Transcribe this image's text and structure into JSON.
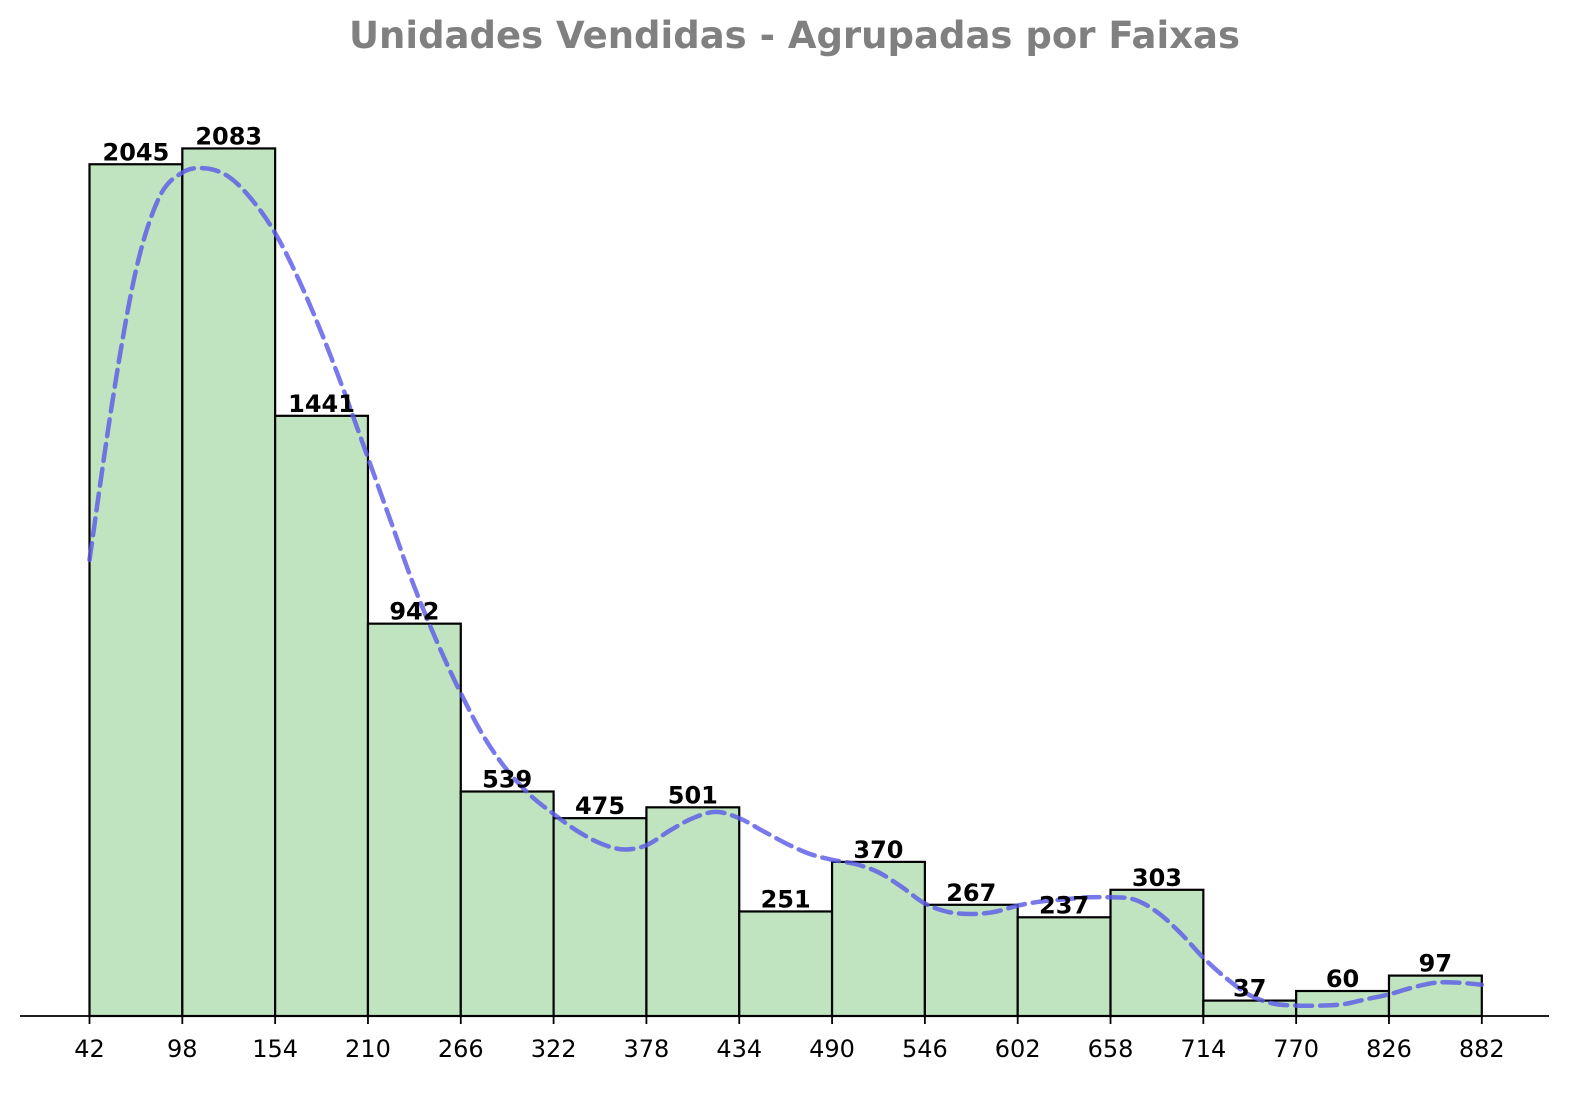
{
  "chart_data": {
    "type": "bar",
    "title": "Unidades Vendidas - Agrupadas por Faixas",
    "xlabel": "",
    "ylabel": "",
    "bin_edges": [
      42,
      98,
      154,
      210,
      266,
      322,
      378,
      434,
      490,
      546,
      602,
      658,
      714,
      770,
      826,
      882
    ],
    "values": [
      2045,
      2083,
      1441,
      942,
      539,
      475,
      501,
      251,
      370,
      267,
      237,
      303,
      37,
      60,
      97
    ],
    "ylim": [
      0,
      2200
    ],
    "grid": false,
    "density_curve": {
      "style": "dashed",
      "x": [
        42,
        56,
        70,
        84,
        98,
        112,
        126,
        140,
        154,
        168,
        182,
        196,
        210,
        224,
        238,
        252,
        266,
        280,
        294,
        308,
        322,
        336,
        350,
        364,
        378,
        392,
        406,
        420,
        434,
        448,
        462,
        476,
        490,
        504,
        518,
        532,
        546,
        560,
        574,
        588,
        602,
        616,
        630,
        644,
        658,
        672,
        686,
        700,
        714,
        728,
        742,
        756,
        770,
        784,
        798,
        812,
        826,
        840,
        854,
        868,
        882
      ],
      "y": [
        1095,
        1480,
        1790,
        1965,
        2025,
        2035,
        2015,
        1960,
        1880,
        1770,
        1640,
        1495,
        1340,
        1185,
        1030,
        895,
        775,
        670,
        590,
        530,
        485,
        445,
        415,
        400,
        410,
        445,
        475,
        490,
        475,
        445,
        415,
        390,
        375,
        365,
        345,
        310,
        270,
        250,
        245,
        250,
        265,
        275,
        280,
        285,
        285,
        280,
        250,
        200,
        140,
        90,
        50,
        30,
        25,
        25,
        28,
        40,
        52,
        68,
        80,
        80,
        75
      ]
    },
    "colors": {
      "bar_fill": "#c0e4c0",
      "bar_edge": "#000000",
      "curve": "#5c5ce6",
      "title": "#808080"
    }
  }
}
